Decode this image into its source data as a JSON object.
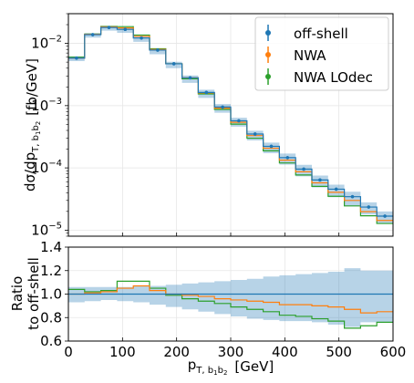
{
  "chart_data": [
    {
      "type": "step",
      "ylabel_main": "dσ/dp",
      "ylabel_sub": "T, b",
      "ylabel_sub1": "1",
      "ylabel_sub2": "b",
      "ylabel_sub3": "2",
      "ylabel_unit": "[fb/GeV]",
      "yscale": "log",
      "ylim": [
        8e-06,
        0.03
      ],
      "xlim": [
        0,
        600
      ],
      "yticks": [
        {
          "value": 0.01,
          "base": "10",
          "exp": "−2"
        },
        {
          "value": 0.001,
          "base": "10",
          "exp": "−3"
        },
        {
          "value": 0.0001,
          "base": "10",
          "exp": "−4"
        },
        {
          "value": 1e-05,
          "base": "10",
          "exp": "−5"
        }
      ],
      "grid": true,
      "legend_position": "top-right",
      "bin_edges": [
        0,
        30,
        60,
        90,
        120,
        150,
        180,
        210,
        240,
        270,
        300,
        330,
        360,
        390,
        420,
        450,
        480,
        510,
        540,
        570,
        600
      ],
      "series": [
        {
          "name": "off-shell",
          "color": "#1f77b4",
          "values": [
            0.0058,
            0.0138,
            0.018,
            0.0168,
            0.0122,
            0.0078,
            0.0047,
            0.0028,
            0.00163,
            0.00095,
            0.00057,
            0.00035,
            0.000222,
            0.000146,
            9.55e-05,
            6.4e-05,
            4.55e-05,
            3.45e-05,
            2.35e-05,
            1.68e-05
          ],
          "band_low": [
            0.0052,
            0.0124,
            0.016,
            0.0148,
            0.0106,
            0.0067,
            0.004,
            0.00232,
            0.00133,
            0.00077,
            0.00046,
            0.000276,
            0.000172,
            0.000113,
            7.33e-05,
            4.87e-05,
            3.38e-05,
            2.48e-05,
            1.78e-05,
            1.27e-05
          ],
          "band_high": [
            0.0062,
            0.0146,
            0.019,
            0.0178,
            0.013,
            0.0083,
            0.00506,
            0.00305,
            0.0018,
            0.00106,
            0.00064,
            0.000395,
            0.000255,
            0.00017,
            0.000112,
            7.52e-05,
            5.37e-05,
            4.14e-05,
            2.8e-05,
            2e-05
          ]
        },
        {
          "name": "NWA",
          "color": "#ff7f0e",
          "values": [
            0.0058,
            0.014,
            0.0184,
            0.0177,
            0.013,
            0.008,
            0.0047,
            0.0028,
            0.0016,
            0.00091,
            0.00054,
            0.00033,
            0.000207,
            0.000133,
            8.65e-05,
            5.75e-05,
            4.05e-05,
            3e-05,
            1.98e-05,
            1.43e-05
          ]
        },
        {
          "name": "NWA LOdec",
          "color": "#2ca02c",
          "values": [
            0.006,
            0.0141,
            0.0187,
            0.0186,
            0.0136,
            0.0082,
            0.0047,
            0.0027,
            0.00154,
            0.00087,
            0.000505,
            0.0003,
            0.000188,
            0.00012,
            7.7e-05,
            5.05e-05,
            3.5e-05,
            2.45e-05,
            1.7e-05,
            1.28e-05
          ]
        }
      ]
    },
    {
      "type": "step",
      "ylabel_line1": "Ratio",
      "ylabel_line2": "to off-shell",
      "ylim": [
        0.6,
        1.4
      ],
      "xlim": [
        0,
        600
      ],
      "yticks": [
        "0.6",
        "0.8",
        "1.0",
        "1.2",
        "1.4"
      ],
      "xticks": [
        "0",
        "100",
        "200",
        "300",
        "400",
        "500",
        "600"
      ],
      "xlabel_main": "p",
      "xlabel_sub": "T, b",
      "xlabel_sub1": "1",
      "xlabel_sub2": "b",
      "xlabel_sub3": "2",
      "xlabel_unit": "[GeV]",
      "grid": true,
      "bin_edges": [
        0,
        30,
        60,
        90,
        120,
        150,
        180,
        210,
        240,
        270,
        300,
        330,
        360,
        390,
        420,
        450,
        480,
        510,
        540,
        570,
        600
      ],
      "series": [
        {
          "name": "off-shell",
          "color": "#1f77b4",
          "values": [
            1,
            1,
            1,
            1,
            1,
            1,
            1,
            1,
            1,
            1,
            1,
            1,
            1,
            1,
            1,
            1,
            1,
            1,
            1,
            1
          ],
          "band_low": [
            0.93,
            0.94,
            0.95,
            0.94,
            0.93,
            0.91,
            0.89,
            0.87,
            0.85,
            0.83,
            0.81,
            0.79,
            0.78,
            0.77,
            0.77,
            0.76,
            0.74,
            0.72,
            0.76,
            0.76
          ],
          "band_high": [
            1.06,
            1.06,
            1.06,
            1.06,
            1.07,
            1.07,
            1.08,
            1.09,
            1.1,
            1.11,
            1.12,
            1.13,
            1.15,
            1.16,
            1.17,
            1.18,
            1.19,
            1.22,
            1.2,
            1.2
          ]
        },
        {
          "name": "NWA",
          "color": "#ff7f0e",
          "values": [
            1.0,
            1.01,
            1.02,
            1.05,
            1.07,
            1.03,
            1.0,
            0.99,
            0.98,
            0.96,
            0.95,
            0.94,
            0.93,
            0.91,
            0.91,
            0.9,
            0.89,
            0.87,
            0.84,
            0.85
          ]
        },
        {
          "name": "NWA LOdec",
          "color": "#2ca02c",
          "values": [
            1.04,
            1.02,
            1.03,
            1.11,
            1.11,
            1.05,
            0.99,
            0.96,
            0.94,
            0.92,
            0.89,
            0.87,
            0.85,
            0.82,
            0.81,
            0.79,
            0.77,
            0.71,
            0.73,
            0.76
          ]
        }
      ]
    }
  ]
}
